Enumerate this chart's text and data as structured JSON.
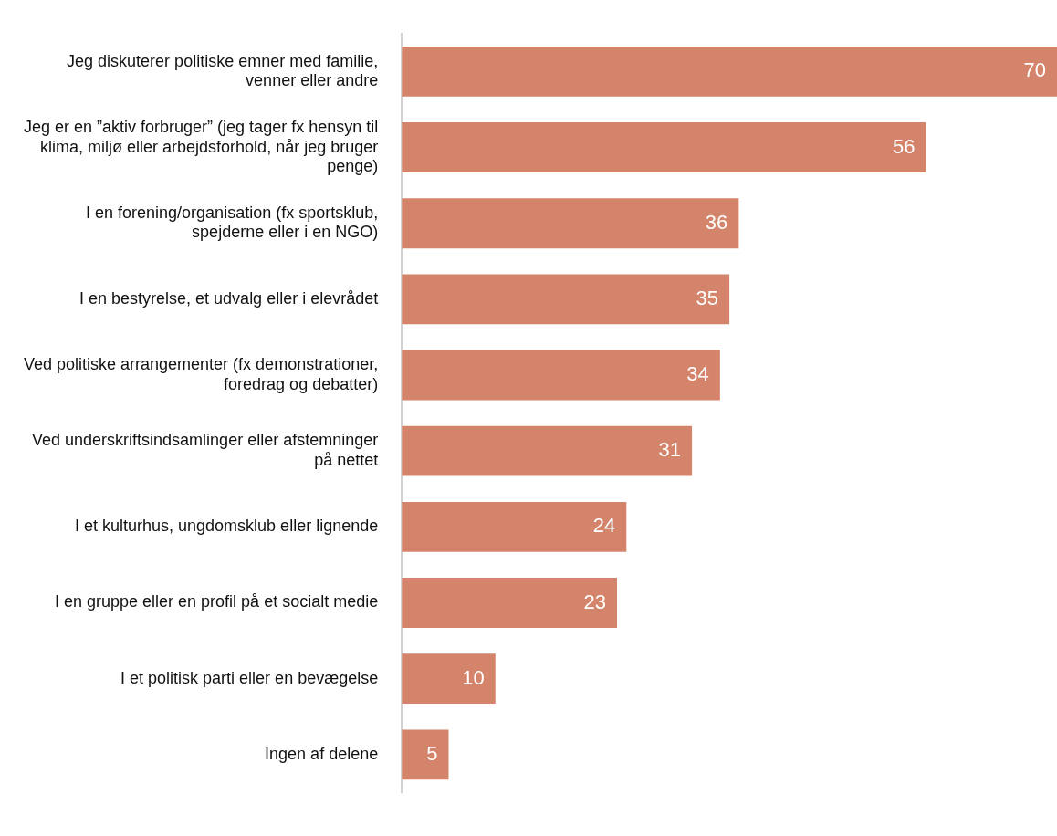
{
  "chart_data": {
    "type": "bar",
    "orientation": "horizontal",
    "categories": [
      "Jeg diskuterer politiske emner med familie, venner eller andre",
      "Jeg er en ”aktiv forbruger” (jeg tager fx hensyn til klima, miljø eller arbejdsforhold, når jeg bruger penge)",
      "I en forening/organisation (fx sportsklub, spejderne eller i en NGO)",
      "I en bestyrelse, et udvalg eller i elevrådet",
      "Ved politiske arrangementer (fx demonstrationer, foredrag og debatter)",
      "Ved underskriftsindsamlinger eller afstemninger på nettet",
      "I et kulturhus, ungdomsklub eller lignende",
      "I en gruppe eller en profil på et socialt medie",
      "I et politisk parti eller en bevægelse",
      "Ingen af delene"
    ],
    "values": [
      70,
      56,
      36,
      35,
      34,
      31,
      24,
      23,
      10,
      5
    ],
    "color": "#d4846a",
    "data_labels": true,
    "xlim": [
      0,
      70
    ],
    "legend": false
  }
}
